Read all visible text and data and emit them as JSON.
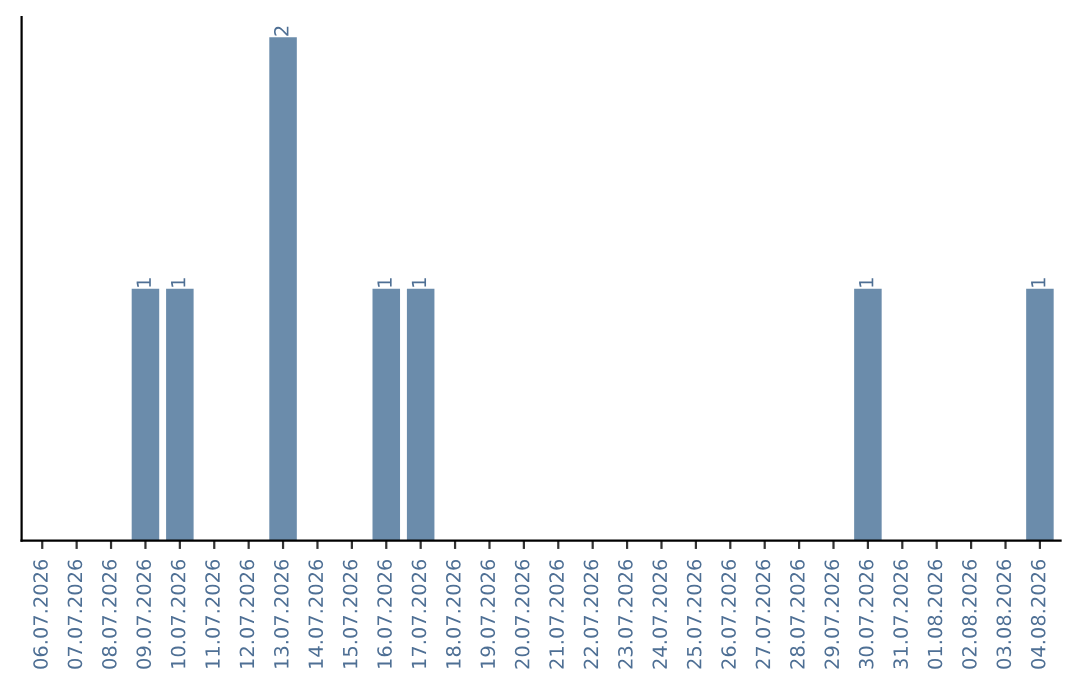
{
  "chart_data": {
    "type": "bar",
    "categories": [
      "06.07.2026",
      "07.07.2026",
      "08.07.2026",
      "09.07.2026",
      "10.07.2026",
      "11.07.2026",
      "12.07.2026",
      "13.07.2026",
      "14.07.2026",
      "15.07.2026",
      "16.07.2026",
      "17.07.2026",
      "18.07.2026",
      "19.07.2026",
      "20.07.2026",
      "21.07.2026",
      "22.07.2026",
      "23.07.2026",
      "24.07.2026",
      "25.07.2026",
      "26.07.2026",
      "27.07.2026",
      "28.07.2026",
      "29.07.2026",
      "30.07.2026",
      "31.07.2026",
      "01.08.2026",
      "02.08.2026",
      "03.08.2026",
      "04.08.2026"
    ],
    "values": [
      0,
      0,
      0,
      1,
      1,
      0,
      0,
      2,
      0,
      0,
      1,
      1,
      0,
      0,
      0,
      0,
      0,
      0,
      0,
      0,
      0,
      0,
      0,
      0,
      1,
      0,
      0,
      0,
      0,
      1
    ],
    "value_labels": [
      null,
      null,
      null,
      "1",
      "1",
      null,
      null,
      "2",
      null,
      null,
      "1",
      "1",
      null,
      null,
      null,
      null,
      null,
      null,
      null,
      null,
      null,
      null,
      null,
      null,
      "1",
      null,
      null,
      null,
      null,
      "1"
    ],
    "color": "#6b8cab",
    "tick_labels": "x",
    "grid": false,
    "legend": false
  }
}
